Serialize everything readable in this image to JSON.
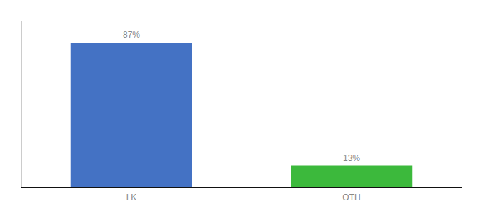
{
  "chart_data": {
    "type": "bar",
    "categories": [
      "LK",
      "OTH"
    ],
    "values": [
      87,
      13
    ],
    "value_labels": [
      "87%",
      "13%"
    ],
    "colors": [
      "#4472c4",
      "#3cb93c"
    ],
    "ylim": [
      0,
      100
    ],
    "grid": false,
    "data_labels": true,
    "tick_labels": "x"
  }
}
